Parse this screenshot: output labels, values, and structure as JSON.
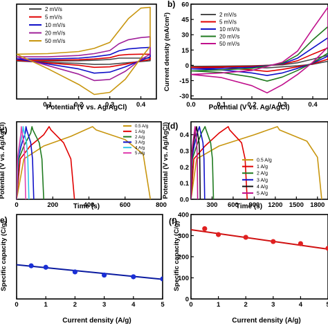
{
  "chart_data": [
    {
      "panel": "a",
      "type": "line",
      "letter": "",
      "xlabel": "Potential (V vs. Ag/AgCl)",
      "ylabel": "",
      "xlim": [
        0.0,
        0.45
      ],
      "ylim": [
        -14,
        22
      ],
      "x_ticks": [
        "0.1",
        "0.2",
        "0.3",
        "0.4"
      ],
      "x_tick_values": [
        0.1,
        0.2,
        0.3,
        0.4
      ],
      "y_ticks": [],
      "legend": [
        "2 mV/s",
        "5 mV/s",
        "10 mV/s",
        "20 mV/s",
        "50 mV/s"
      ],
      "legend_position": "top-left",
      "series": [
        {
          "name": "2 mV/s",
          "color": "#4a4a4a",
          "x": [
            0.0,
            0.1,
            0.2,
            0.25,
            0.3,
            0.33,
            0.36,
            0.4,
            0.43,
            0.43,
            0.4,
            0.35,
            0.3,
            0.25,
            0.2,
            0.1,
            0.0
          ],
          "y": [
            0.4,
            0.4,
            0.5,
            0.7,
            1.0,
            1.5,
            1.5,
            1.5,
            1.5,
            0.5,
            0.2,
            -0.3,
            -0.8,
            -0.9,
            -0.5,
            -0.1,
            0.4
          ]
        },
        {
          "name": "5 mV/s",
          "color": "#e00000",
          "x": [
            0.0,
            0.1,
            0.2,
            0.25,
            0.3,
            0.33,
            0.36,
            0.4,
            0.43,
            0.43,
            0.4,
            0.35,
            0.3,
            0.25,
            0.2,
            0.1,
            0.0
          ],
          "y": [
            0.7,
            0.7,
            0.9,
            1.2,
            1.7,
            2.6,
            2.9,
            3.0,
            3.0,
            1.0,
            0.4,
            -0.8,
            -1.8,
            -2.0,
            -1.2,
            -0.3,
            0.7
          ]
        },
        {
          "name": "10 mV/s",
          "color": "#1010c8",
          "x": [
            0.0,
            0.1,
            0.2,
            0.25,
            0.3,
            0.33,
            0.36,
            0.4,
            0.43,
            0.43,
            0.4,
            0.35,
            0.3,
            0.25,
            0.2,
            0.1,
            0.0
          ],
          "y": [
            1.2,
            1.2,
            1.5,
            2.0,
            2.8,
            4.3,
            5.0,
            5.4,
            5.6,
            2.0,
            0.6,
            -1.8,
            -3.8,
            -4.2,
            -2.6,
            -0.7,
            1.2
          ]
        },
        {
          "name": "20 mV/s",
          "color": "#a0209a",
          "x": [
            0.0,
            0.1,
            0.2,
            0.25,
            0.3,
            0.33,
            0.36,
            0.4,
            0.43,
            0.43,
            0.4,
            0.35,
            0.3,
            0.25,
            0.2,
            0.1,
            0.0
          ],
          "y": [
            2.0,
            2.0,
            2.5,
            3.2,
            4.4,
            7.0,
            8.5,
            9.3,
            9.6,
            3.0,
            1.0,
            -3.5,
            -6.6,
            -7.0,
            -4.6,
            -1.3,
            2.0
          ]
        },
        {
          "name": "50 mV/s",
          "color": "#c8960f",
          "x": [
            0.0,
            0.1,
            0.2,
            0.25,
            0.3,
            0.33,
            0.36,
            0.4,
            0.43,
            0.43,
            0.4,
            0.35,
            0.3,
            0.25,
            0.2,
            0.1,
            0.0
          ],
          "y": [
            3.0,
            3.2,
            4.0,
            5.2,
            7.5,
            12.0,
            16.5,
            20.5,
            20.8,
            6.0,
            1.5,
            -6.5,
            -11.5,
            -12.3,
            -8.5,
            -2.5,
            3.0
          ]
        }
      ]
    },
    {
      "panel": "b",
      "type": "line",
      "letter": "b)",
      "xlabel": "Potential (V vs. Ag/AgCl)",
      "ylabel": "Current density (mA/cm²)",
      "xlim": [
        0.0,
        0.45
      ],
      "ylim": [
        -33,
        60
      ],
      "x_ticks": [
        "0.0",
        "0.1",
        "0.2",
        "0.3",
        "0.4"
      ],
      "x_tick_values": [
        0.0,
        0.1,
        0.2,
        0.3,
        0.4
      ],
      "y_ticks": [
        "60",
        "45",
        "30",
        "15",
        "0",
        "-15",
        "-30"
      ],
      "y_tick_values": [
        60,
        45,
        30,
        15,
        0,
        -15,
        -30
      ],
      "legend": [
        "2 mV/s",
        "5 mV/s",
        "10 mV/s",
        "20 mV/s",
        "50 mV/s"
      ],
      "legend_position": "top-center",
      "series": [
        {
          "name": "2 mV/s",
          "color": "#4a4a4a",
          "x": [
            0.0,
            0.1,
            0.2,
            0.3,
            0.35,
            0.4,
            0.45,
            0.45,
            0.4,
            0.35,
            0.3,
            0.25,
            0.2,
            0.1,
            0.0
          ],
          "y": [
            -1.0,
            -0.8,
            -0.5,
            0.5,
            2.5,
            6.0,
            10.0,
            4.0,
            1.0,
            -0.5,
            -1.5,
            -2.5,
            -2.0,
            -1.3,
            -1.0
          ]
        },
        {
          "name": "5 mV/s",
          "color": "#e00000",
          "x": [
            0.0,
            0.1,
            0.2,
            0.3,
            0.35,
            0.4,
            0.45,
            0.45,
            0.4,
            0.35,
            0.3,
            0.25,
            0.2,
            0.1,
            0.0
          ],
          "y": [
            -2.0,
            -1.6,
            -1.0,
            1.0,
            4.5,
            11.0,
            17.0,
            6.0,
            1.5,
            -1.5,
            -4.0,
            -6.0,
            -4.5,
            -2.6,
            -2.0
          ]
        },
        {
          "name": "10 mV/s",
          "color": "#1010c8",
          "x": [
            0.0,
            0.1,
            0.2,
            0.3,
            0.35,
            0.4,
            0.45,
            0.45,
            0.4,
            0.35,
            0.3,
            0.25,
            0.2,
            0.1,
            0.0
          ],
          "y": [
            -3.5,
            -3.0,
            -2.0,
            1.5,
            7.0,
            17.0,
            27.0,
            9.0,
            2.0,
            -3.0,
            -7.5,
            -10.0,
            -7.5,
            -4.5,
            -3.5
          ]
        },
        {
          "name": "20 mV/s",
          "color": "#1f7a1f",
          "x": [
            0.0,
            0.1,
            0.2,
            0.3,
            0.35,
            0.4,
            0.45,
            0.45,
            0.4,
            0.35,
            0.3,
            0.25,
            0.2,
            0.1,
            0.0
          ],
          "y": [
            -5.5,
            -4.5,
            -3.0,
            2.0,
            10.0,
            25.0,
            38.0,
            12.0,
            2.5,
            -5.0,
            -11.5,
            -15.5,
            -11.5,
            -7.0,
            -5.5
          ]
        },
        {
          "name": "50 mV/s",
          "color": "#c0108c",
          "x": [
            0.0,
            0.1,
            0.2,
            0.3,
            0.35,
            0.4,
            0.45,
            0.45,
            0.4,
            0.35,
            0.3,
            0.25,
            0.2,
            0.1,
            0.0
          ],
          "y": [
            -9.0,
            -7.5,
            -5.0,
            3.0,
            14.0,
            36.0,
            57.0,
            18.0,
            3.0,
            -9.0,
            -19.0,
            -27.0,
            -20.0,
            -12.0,
            -9.0
          ]
        }
      ]
    },
    {
      "panel": "c",
      "type": "line",
      "letter": "c)",
      "xlabel": "Time (s)",
      "ylabel": "Potential (V vs. Ag/AgCl)",
      "xlim": [
        0,
        800
      ],
      "ylim": [
        0.0,
        0.48
      ],
      "x_ticks": [
        "0",
        "200",
        "400",
        "600",
        "800"
      ],
      "x_tick_values": [
        0,
        200,
        400,
        600,
        800
      ],
      "y_ticks": [],
      "legend": [
        "0.5 A/g",
        "1 A/g",
        "2 A/g",
        "3 A/g",
        "4 A/g",
        "5 A/g"
      ],
      "legend_position": "top-right",
      "series": [
        {
          "name": "0.5 A/g",
          "color": "#c8960f",
          "x": [
            0,
            40,
            150,
            300,
            420,
            440,
            600,
            700,
            740
          ],
          "y": [
            0.0,
            0.25,
            0.33,
            0.39,
            0.45,
            0.43,
            0.37,
            0.28,
            0.0
          ]
        },
        {
          "name": "1 A/g",
          "color": "#e00000",
          "x": [
            0,
            20,
            75,
            150,
            180,
            190,
            260,
            300,
            320
          ],
          "y": [
            0.0,
            0.25,
            0.33,
            0.4,
            0.45,
            0.43,
            0.35,
            0.25,
            0.0
          ]
        },
        {
          "name": "2 A/g",
          "color": "#1f7a1f",
          "x": [
            0,
            12,
            40,
            78,
            85,
            90,
            125,
            140,
            150
          ],
          "y": [
            0.0,
            0.25,
            0.33,
            0.41,
            0.45,
            0.43,
            0.35,
            0.25,
            0.0
          ]
        },
        {
          "name": "3 A/g",
          "color": "#1010c8",
          "x": [
            0,
            8,
            25,
            48,
            52,
            56,
            78,
            88,
            95
          ],
          "y": [
            0.0,
            0.25,
            0.33,
            0.41,
            0.45,
            0.43,
            0.35,
            0.25,
            0.0
          ]
        },
        {
          "name": "4 A/g",
          "color": "#30c8e8",
          "x": [
            0,
            6,
            18,
            33,
            36,
            39,
            55,
            62,
            68
          ],
          "y": [
            0.0,
            0.25,
            0.33,
            0.41,
            0.45,
            0.43,
            0.35,
            0.25,
            0.0
          ]
        },
        {
          "name": "5 A/g",
          "color": "#e040b0",
          "x": [
            0,
            5,
            14,
            24,
            26,
            28,
            40,
            45,
            50
          ],
          "y": [
            0.0,
            0.25,
            0.33,
            0.41,
            0.45,
            0.43,
            0.35,
            0.25,
            0.0
          ]
        }
      ]
    },
    {
      "panel": "d",
      "type": "line",
      "letter": "(d)",
      "xlabel": "Time (s)",
      "ylabel": "Potential (V vs. Ag/AgCl)",
      "xlim": [
        0,
        1950
      ],
      "ylim": [
        0.0,
        0.48
      ],
      "x_ticks": [
        "300",
        "600",
        "900",
        "1200",
        "1500",
        "1800"
      ],
      "x_tick_values": [
        300,
        600,
        900,
        1200,
        1500,
        1800
      ],
      "y_ticks": [
        "0.4",
        "0.3",
        "0.2",
        "0.1",
        "0.0"
      ],
      "y_tick_values": [
        0.4,
        0.3,
        0.2,
        0.1,
        0.0
      ],
      "legend": [
        "0.5 A/g",
        "1 A/g",
        "2 A/g",
        "3 A/g",
        "4 A/g",
        "5 A/g"
      ],
      "legend_position": "right",
      "series": [
        {
          "name": "0.5 A/g",
          "color": "#c8960f",
          "x": [
            0,
            80,
            400,
            900,
            1230,
            1260,
            1650,
            1800,
            1860
          ],
          "y": [
            0.0,
            0.25,
            0.33,
            0.4,
            0.45,
            0.43,
            0.36,
            0.26,
            0.0
          ]
        },
        {
          "name": "1 A/g",
          "color": "#e00000",
          "x": [
            0,
            40,
            200,
            400,
            530,
            550,
            720,
            770,
            800
          ],
          "y": [
            0.0,
            0.25,
            0.33,
            0.41,
            0.45,
            0.43,
            0.35,
            0.25,
            0.0
          ]
        },
        {
          "name": "2 A/g",
          "color": "#1f7a1f",
          "x": [
            0,
            20,
            80,
            150,
            200,
            215,
            280,
            305,
            320
          ],
          "y": [
            0.0,
            0.25,
            0.33,
            0.41,
            0.45,
            0.43,
            0.35,
            0.25,
            0.0
          ]
        },
        {
          "name": "3 A/g",
          "color": "#1010c8",
          "x": [
            0,
            12,
            45,
            90,
            120,
            130,
            170,
            185,
            195
          ],
          "y": [
            0.0,
            0.25,
            0.33,
            0.41,
            0.45,
            0.43,
            0.35,
            0.25,
            0.0
          ]
        },
        {
          "name": "4 A/g",
          "color": "#111111",
          "x": [
            0,
            9,
            30,
            62,
            80,
            87,
            115,
            125,
            132
          ],
          "y": [
            0.0,
            0.25,
            0.33,
            0.41,
            0.45,
            0.43,
            0.35,
            0.25,
            0.0
          ]
        },
        {
          "name": "5 A/g",
          "color": "#c0108c",
          "x": [
            0,
            7,
            22,
            45,
            58,
            63,
            82,
            90,
            95
          ],
          "y": [
            0.0,
            0.25,
            0.33,
            0.41,
            0.45,
            0.43,
            0.35,
            0.25,
            0.0
          ]
        }
      ]
    },
    {
      "panel": "e",
      "type": "scatter",
      "letter": "e)",
      "xlabel": "Current density (A/g)",
      "ylabel": "Specific capacity (C/g)",
      "xlim": [
        0,
        5
      ],
      "ylim": [
        0,
        400
      ],
      "x_ticks": [
        "0",
        "1",
        "2",
        "3",
        "4",
        "5"
      ],
      "x_tick_values": [
        0,
        1,
        2,
        3,
        4,
        5
      ],
      "y_ticks": [],
      "marker_color": "#1a2fd6",
      "fit_color": "#0a1aa0",
      "x": [
        0.5,
        1,
        2,
        3,
        4,
        5
      ],
      "y": [
        157,
        150,
        128,
        113,
        105,
        95
      ],
      "fit": {
        "x": [
          0,
          5
        ],
        "y": [
          162,
          93
        ]
      }
    },
    {
      "panel": "f",
      "type": "scatter",
      "letter": "(f)",
      "xlabel": "Current density (A/g)",
      "ylabel": "Specific capacity (C/g)",
      "xlim": [
        0,
        5
      ],
      "ylim": [
        0,
        400
      ],
      "x_ticks": [
        "0",
        "1",
        "2",
        "3",
        "4",
        "5"
      ],
      "x_tick_values": [
        0,
        1,
        2,
        3,
        4,
        5
      ],
      "y_ticks": [
        "400",
        "300",
        "200",
        "100",
        "0"
      ],
      "y_tick_values": [
        400,
        300,
        200,
        100,
        0
      ],
      "marker_color": "#e02020",
      "fit_color": "#d01010",
      "x": [
        0.5,
        1,
        2,
        3,
        4,
        5
      ],
      "y": [
        333,
        305,
        292,
        272,
        262,
        240
      ],
      "fit": {
        "x": [
          0,
          5
        ],
        "y": [
          328,
          236
        ]
      }
    }
  ]
}
